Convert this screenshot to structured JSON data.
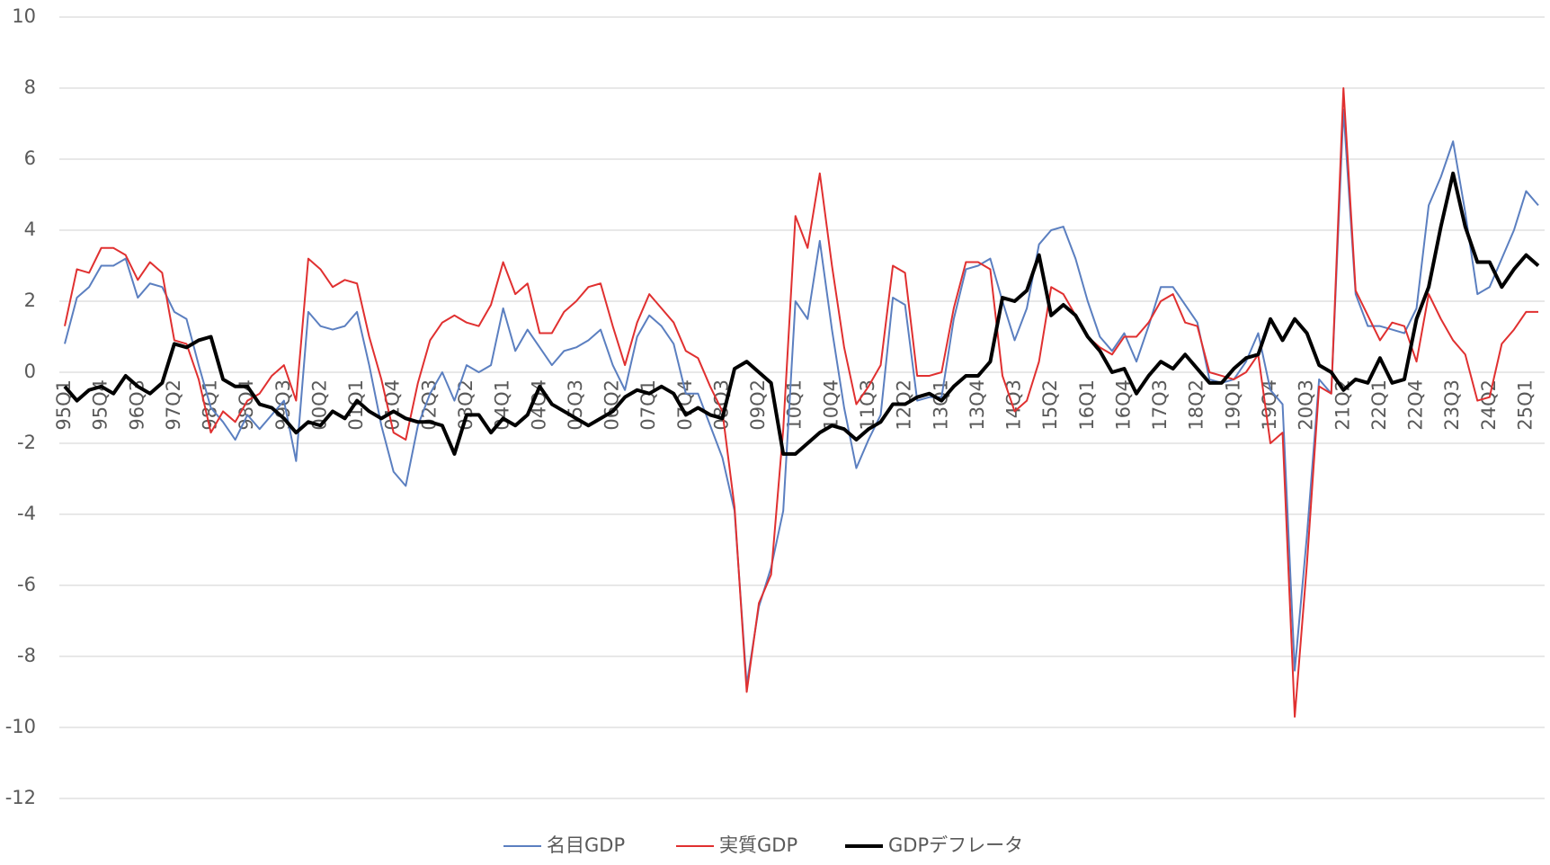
{
  "chart_data": {
    "type": "line",
    "categories": [
      "95Q1",
      null,
      null,
      "95Q4",
      null,
      null,
      "96Q3",
      null,
      null,
      "97Q2",
      null,
      null,
      "98Q1",
      null,
      null,
      "98Q4",
      null,
      null,
      "99Q3",
      null,
      null,
      "00Q2",
      null,
      null,
      "01Q1",
      null,
      null,
      "01Q4",
      null,
      null,
      "02Q3",
      null,
      null,
      "03Q2",
      null,
      null,
      "04Q1",
      null,
      null,
      "04Q4",
      null,
      null,
      "05Q3",
      null,
      null,
      "06Q2",
      null,
      null,
      "07Q1",
      null,
      null,
      "07Q4",
      null,
      null,
      "08Q3",
      null,
      null,
      "09Q2",
      null,
      null,
      "10Q1",
      null,
      null,
      "10Q4",
      null,
      null,
      "11Q3",
      null,
      null,
      "12Q2",
      null,
      null,
      "13Q1",
      null,
      null,
      "13Q4",
      null,
      null,
      "14Q3",
      null,
      null,
      "15Q2",
      null,
      null,
      "16Q1",
      null,
      null,
      "16Q4",
      null,
      null,
      "17Q3",
      null,
      null,
      "18Q2",
      null,
      null,
      "19Q1",
      null,
      null,
      "19Q4",
      null,
      null,
      "20Q3",
      null,
      null,
      "21Q2",
      null,
      null,
      "22Q1",
      null,
      null,
      "22Q4",
      null,
      null,
      "23Q3",
      null,
      null,
      "24Q2",
      null,
      null,
      "25Q1",
      null
    ],
    "series": [
      {
        "name": "名目GDP",
        "color": "#5b7fc0",
        "width": 2,
        "values": [
          0.8,
          2.1,
          2.4,
          3.0,
          3.0,
          3.2,
          2.1,
          2.5,
          2.4,
          1.7,
          1.5,
          0.2,
          -1.0,
          -1.4,
          -1.9,
          -1.2,
          -1.6,
          -1.2,
          -0.8,
          -2.5,
          1.7,
          1.3,
          1.2,
          1.3,
          1.7,
          0.2,
          -1.5,
          -2.8,
          -3.2,
          -1.5,
          -0.6,
          0.0,
          -0.8,
          0.2,
          0.0,
          0.2,
          1.8,
          0.6,
          1.2,
          0.7,
          0.2,
          0.6,
          0.7,
          0.9,
          1.2,
          0.2,
          -0.5,
          1.0,
          1.6,
          1.3,
          0.8,
          -0.6,
          -0.6,
          -1.5,
          -2.4,
          -3.9,
          -8.8,
          -6.6,
          -5.5,
          -3.9,
          2.0,
          1.5,
          3.7,
          1.2,
          -1.0,
          -2.7,
          -1.9,
          -1.2,
          2.1,
          1.9,
          -0.8,
          -0.7,
          -0.7,
          1.5,
          2.9,
          3.0,
          3.2,
          2.0,
          0.9,
          1.8,
          3.6,
          4.0,
          4.1,
          3.2,
          2.0,
          1.0,
          0.6,
          1.1,
          0.3,
          1.3,
          2.4,
          2.4,
          1.9,
          1.4,
          -0.2,
          -0.3,
          -0.2,
          0.3,
          1.1,
          -0.5,
          -0.9,
          -8.4,
          -4.6,
          -0.2,
          -0.6,
          7.4,
          2.2,
          1.3,
          1.3,
          1.2,
          1.1,
          1.8,
          4.7,
          5.5,
          6.5,
          4.5,
          2.2,
          2.4,
          3.2,
          4.0,
          5.1,
          4.7
        ]
      },
      {
        "name": "実質GDP",
        "color": "#e03030",
        "width": 2,
        "values": [
          1.3,
          2.9,
          2.8,
          3.5,
          3.5,
          3.3,
          2.6,
          3.1,
          2.8,
          0.9,
          0.8,
          -0.2,
          -1.7,
          -1.1,
          -1.4,
          -0.8,
          -0.6,
          -0.1,
          0.2,
          -0.8,
          3.2,
          2.9,
          2.4,
          2.6,
          2.5,
          1.0,
          -0.2,
          -1.7,
          -1.9,
          -0.3,
          0.9,
          1.4,
          1.6,
          1.4,
          1.3,
          1.9,
          3.1,
          2.2,
          2.5,
          1.1,
          1.1,
          1.7,
          2.0,
          2.4,
          2.5,
          1.3,
          0.2,
          1.4,
          2.2,
          1.8,
          1.4,
          0.6,
          0.4,
          -0.4,
          -1.1,
          -3.8,
          -9.0,
          -6.5,
          -5.7,
          -1.6,
          4.4,
          3.5,
          5.6,
          3.0,
          0.7,
          -0.9,
          -0.4,
          0.2,
          3.0,
          2.8,
          -0.1,
          -0.1,
          0.0,
          1.8,
          3.1,
          3.1,
          2.9,
          -0.1,
          -1.1,
          -0.8,
          0.3,
          2.4,
          2.2,
          1.6,
          1.0,
          0.7,
          0.5,
          1.0,
          1.0,
          1.4,
          2.0,
          2.2,
          1.4,
          1.3,
          0.0,
          -0.1,
          -0.2,
          0.0,
          0.5,
          -2.0,
          -1.7,
          -9.7,
          -5.4,
          -0.4,
          -0.6,
          8.0,
          2.3,
          1.6,
          0.9,
          1.4,
          1.3,
          0.3,
          2.2,
          1.5,
          0.9,
          0.5,
          -0.8,
          -0.7,
          0.8,
          1.2,
          1.7,
          1.7
        ]
      },
      {
        "name": "GDPデフレータ",
        "color": "#000000",
        "width": 4,
        "values": [
          -0.4,
          -0.8,
          -0.5,
          -0.4,
          -0.6,
          -0.1,
          -0.4,
          -0.6,
          -0.3,
          0.8,
          0.7,
          0.9,
          1.0,
          -0.2,
          -0.4,
          -0.4,
          -0.9,
          -1.0,
          -1.3,
          -1.7,
          -1.4,
          -1.5,
          -1.1,
          -1.3,
          -0.8,
          -1.1,
          -1.3,
          -1.1,
          -1.3,
          -1.4,
          -1.4,
          -1.5,
          -2.3,
          -1.2,
          -1.2,
          -1.7,
          -1.3,
          -1.5,
          -1.2,
          -0.4,
          -0.9,
          -1.1,
          -1.3,
          -1.5,
          -1.3,
          -1.1,
          -0.7,
          -0.5,
          -0.6,
          -0.4,
          -0.6,
          -1.2,
          -1.0,
          -1.2,
          -1.3,
          0.1,
          0.3,
          0.0,
          -0.3,
          -2.3,
          -2.3,
          -2.0,
          -1.7,
          -1.5,
          -1.6,
          -1.9,
          -1.6,
          -1.4,
          -0.9,
          -0.9,
          -0.7,
          -0.6,
          -0.8,
          -0.4,
          -0.1,
          -0.1,
          0.3,
          2.1,
          2.0,
          2.3,
          3.3,
          1.6,
          1.9,
          1.6,
          1.0,
          0.6,
          0.0,
          0.1,
          -0.6,
          -0.1,
          0.3,
          0.1,
          0.5,
          0.1,
          -0.3,
          -0.3,
          0.1,
          0.4,
          0.5,
          1.5,
          0.9,
          1.5,
          1.1,
          0.2,
          0.0,
          -0.5,
          -0.2,
          -0.3,
          0.4,
          -0.3,
          -0.2,
          1.5,
          2.4,
          4.1,
          5.6,
          4.1,
          3.1,
          3.1,
          2.4,
          2.9,
          3.3,
          3.0
        ]
      }
    ],
    "ylim": [
      -12,
      10
    ],
    "yticks": [
      -12,
      -10,
      -8,
      -6,
      -4,
      -2,
      0,
      2,
      4,
      6,
      8,
      10
    ],
    "grid": true,
    "legend": "bottom"
  }
}
